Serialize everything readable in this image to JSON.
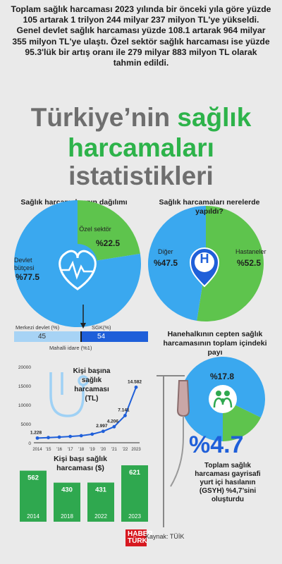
{
  "intro": "Toplam sağlık harcaması 2023 yılında bir önceki yıla göre yüzde 105 artarak 1 trilyon 244 milyar 237 milyon TL'ye yükseldi. Genel devlet sağlık harcaması yüzde 108.1 artarak 964 milyar 355 milyon TL'ye ulaştı. Özel sektör sağlık harcaması ise yüzde 95.3'lük bir artış oranı ile 279 milyar 883 milyon TL olarak tahmin edildi.",
  "title": {
    "line1_part1": "Türkiye’nin ",
    "line1_part2": "sağlık",
    "line2": "harcamaları",
    "line3": "istatistikleri"
  },
  "colors": {
    "blue": "#3aa8ef",
    "green": "#5ec44d",
    "dark_green": "#2fa84f",
    "navy": "#1f5fd9",
    "lightblue": "#a7d3f5",
    "gray_title": "#6e6e6e"
  },
  "distribution": {
    "title": "Sağlık harcamalarının dağılımı",
    "slices": [
      {
        "label": "Devlet bütçesi",
        "value": "%77.5"
      },
      {
        "label": "Özel sektör",
        "value": "%22.5"
      }
    ],
    "icon": "heart-pulse-icon",
    "split_labels": {
      "left": "Merkezi devlet (%)",
      "right": "SGK(%)",
      "bottom": "Mahalli idare (%1)"
    },
    "split_values": {
      "left": "45",
      "right": "54"
    }
  },
  "where": {
    "title": "Sağlık harcamaları nerelerde yapıldı?",
    "slices": [
      {
        "label": "Diğer",
        "value": "%47.5"
      },
      {
        "label": "Hastaneler",
        "value": "%52.5"
      }
    ],
    "icon": "hospital-pin-icon",
    "icon_letter": "H"
  },
  "household": {
    "title": "Hanehalkının cepten sağlık harcamasının toplam içindeki payı",
    "value": "%17.8",
    "icon": "family-icon"
  },
  "ghsy": {
    "value": "%4.7",
    "text": "Toplam sağlık harcaması gayrisafi yurt içi hasılanın (GSYH) %4,7’sini oluşturdu"
  },
  "per_capita_line": {
    "title": "Kişi başına sağlık harcaması (TL)",
    "icon": "stethoscope-icon"
  },
  "per_capita_usd": {
    "title": "Kişi başı sağlık harcaması ($)"
  },
  "source": {
    "label": "Kaynak: TÜİK",
    "logo_line1": "HABER",
    "logo_line2": "TÜRK"
  },
  "chart_data": [
    {
      "type": "pie",
      "title": "Sağlık harcamalarının dağılımı",
      "categories": [
        "Devlet bütçesi",
        "Özel sektör"
      ],
      "values": [
        77.5,
        22.5
      ]
    },
    {
      "type": "bar",
      "title": "",
      "categories": [
        "Merkezi devlet (%)",
        "SGK(%)",
        "Mahalli idare (%1)"
      ],
      "values": [
        45,
        54,
        1
      ]
    },
    {
      "type": "pie",
      "title": "Sağlık harcamaları nerelerde yapıldı?",
      "categories": [
        "Diğer",
        "Hastaneler"
      ],
      "values": [
        47.5,
        52.5
      ]
    },
    {
      "type": "pie",
      "title": "Hanehalkının cepten sağlık harcamasının toplam içindeki payı",
      "categories": [
        "",
        ""
      ],
      "values": [
        17.8,
        82.2
      ]
    },
    {
      "type": "line",
      "title": "Kişi başına sağlık harcaması (TL)",
      "x": [
        "2014",
        "'15",
        "'16",
        "'17",
        "'18",
        "'19",
        "'20",
        "'21",
        "'22",
        "2023"
      ],
      "y": [
        1228,
        1350,
        1480,
        1650,
        1850,
        2250,
        2997,
        4206,
        7141,
        14582
      ],
      "data_labels": {
        "2014": "1.228",
        "'20": "2.997",
        "'21": "4.206",
        "'22": "7.141",
        "2023": "14.582"
      },
      "yticks": [
        0,
        5000,
        10000,
        15000,
        20000
      ],
      "ylim": [
        0,
        20000
      ],
      "grid": false
    },
    {
      "type": "bar",
      "title": "Kişi başı sağlık harcaması ($)",
      "categories": [
        "2014",
        "2018",
        "2022",
        "2023"
      ],
      "values": [
        562,
        430,
        431,
        621
      ]
    }
  ]
}
